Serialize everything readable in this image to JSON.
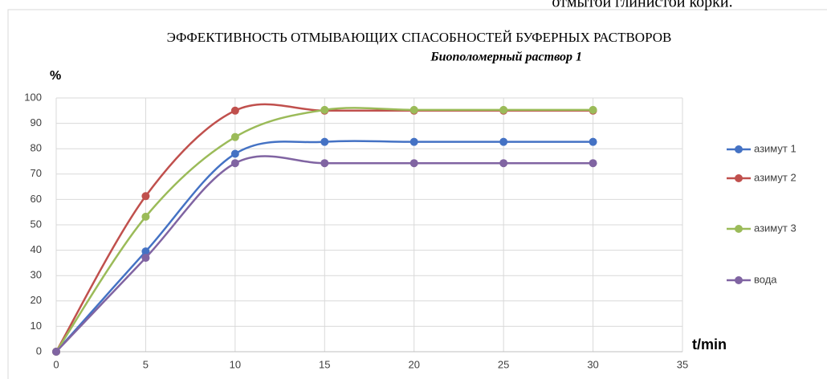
{
  "page_text": "отмытой глинистой корки.",
  "chart_data": {
    "type": "line",
    "title": "ЭФФЕКТИВНОСТЬ  ОТМЫВАЮЩИХ СПАСОБНОСТЕЙ  БУФЕРНЫХ РАСТВОРОВ",
    "subtitle": "Биополомерный раствор 1",
    "y_label": "%",
    "x_label": "t/min",
    "x": [
      0,
      5,
      10,
      15,
      20,
      25,
      30
    ],
    "series": [
      {
        "name": "азимут 1",
        "color": "#4472c4",
        "values": [
          0,
          39.5,
          78,
          82.7,
          82.7,
          82.7,
          82.7
        ]
      },
      {
        "name": "азимут 2",
        "color": "#c0504d",
        "values": [
          0,
          61.3,
          95,
          95,
          95,
          95,
          95
        ]
      },
      {
        "name": "азимут 3",
        "color": "#9bbb59",
        "values": [
          0,
          53.2,
          84.6,
          95.3,
          95.3,
          95.3,
          95.3
        ]
      },
      {
        "name": "вода",
        "color": "#8064a2",
        "values": [
          0,
          37,
          74.3,
          74.3,
          74.3,
          74.3,
          74.3
        ]
      }
    ],
    "xlim": [
      0,
      35
    ],
    "xticks": [
      0,
      5,
      10,
      15,
      20,
      25,
      30,
      35
    ],
    "ylim": [
      0,
      100
    ],
    "yticks": [
      0,
      10,
      20,
      30,
      40,
      50,
      60,
      70,
      80,
      90,
      100
    ],
    "grid": true,
    "legend": "right",
    "smooth": true
  }
}
